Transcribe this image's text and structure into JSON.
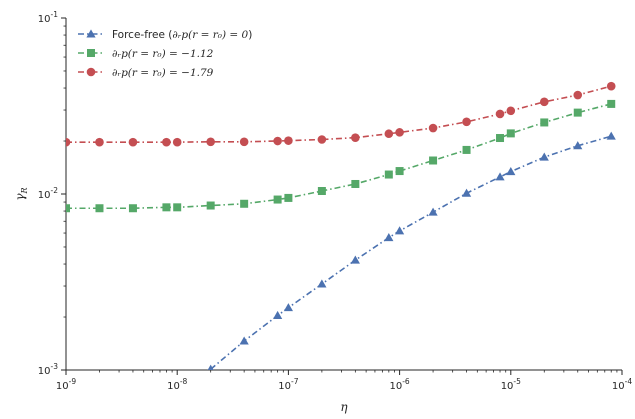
{
  "chart_data": {
    "type": "line",
    "xlabel": "η",
    "ylabel": "γR",
    "xscale": "log",
    "yscale": "log",
    "xlim": [
      1e-09,
      0.0001
    ],
    "ylim": [
      0.001,
      0.1
    ],
    "grid": false,
    "legend_position": "top-left",
    "x_ticks": [
      1e-09,
      1e-08,
      1e-07,
      1e-06,
      1e-05,
      0.0001
    ],
    "x_tick_labels": [
      {
        "base": "10",
        "exp": "-9"
      },
      {
        "base": "10",
        "exp": "-8"
      },
      {
        "base": "10",
        "exp": "-7"
      },
      {
        "base": "10",
        "exp": "-6"
      },
      {
        "base": "10",
        "exp": "-5"
      },
      {
        "base": "10",
        "exp": "-4"
      }
    ],
    "y_ticks": [
      0.001,
      0.01,
      0.1
    ],
    "y_tick_labels": [
      {
        "base": "10",
        "exp": "-3"
      },
      {
        "base": "10",
        "exp": "-2"
      },
      {
        "base": "10",
        "exp": "-1"
      }
    ],
    "series": [
      {
        "name": "Force-free (∂ᵣp(r = r₀) = 0)",
        "legend_parts": [
          {
            "text": "Force-free (",
            "style": "plain"
          },
          {
            "text": "∂ᵣp(r = r₀) = 0",
            "style": "math"
          },
          {
            "text": ")",
            "style": "plain"
          }
        ],
        "color": "#4C72B0",
        "marker": "triangle",
        "x": [
          2e-08,
          4e-08,
          8e-08,
          1e-07,
          2e-07,
          4e-07,
          8e-07,
          1e-06,
          2e-06,
          4e-06,
          8e-06,
          1e-05,
          2e-05,
          4e-05,
          8e-05
        ],
        "y": [
          0.00101,
          0.00146,
          0.00204,
          0.00226,
          0.00308,
          0.00421,
          0.00565,
          0.00617,
          0.00788,
          0.0101,
          0.0125,
          0.0134,
          0.0162,
          0.0188,
          0.0213
        ]
      },
      {
        "name": "∂ᵣp(r = r₀) = −1.12",
        "legend_parts": [
          {
            "text": "∂ᵣp(r = r₀) = −1.12",
            "style": "math"
          }
        ],
        "color": "#55A868",
        "marker": "square",
        "x": [
          1e-09,
          2e-09,
          4e-09,
          8e-09,
          1e-08,
          2e-08,
          4e-08,
          8e-08,
          1e-07,
          2e-07,
          4e-07,
          8e-07,
          1e-06,
          2e-06,
          4e-06,
          8e-06,
          1e-05,
          2e-05,
          4e-05,
          8e-05
        ],
        "y": [
          0.0083,
          0.0083,
          0.0083,
          0.0084,
          0.0084,
          0.0086,
          0.0088,
          0.0093,
          0.0095,
          0.0104,
          0.0114,
          0.0129,
          0.0135,
          0.0155,
          0.0178,
          0.0208,
          0.0221,
          0.0255,
          0.029,
          0.0325
        ]
      },
      {
        "name": "∂ᵣp(r = r₀) = −1.79",
        "legend_parts": [
          {
            "text": "∂ᵣp(r = r₀) = −1.79",
            "style": "math"
          }
        ],
        "color": "#C44E52",
        "marker": "circle",
        "x": [
          1e-09,
          2e-09,
          4e-09,
          8e-09,
          1e-08,
          2e-08,
          4e-08,
          8e-08,
          1e-07,
          2e-07,
          4e-07,
          8e-07,
          1e-06,
          2e-06,
          4e-06,
          8e-06,
          1e-05,
          2e-05,
          4e-05,
          8e-05
        ],
        "y": [
          0.0197,
          0.0197,
          0.0197,
          0.0197,
          0.0197,
          0.0198,
          0.0198,
          0.02,
          0.0201,
          0.0204,
          0.0209,
          0.022,
          0.0224,
          0.0237,
          0.0257,
          0.0285,
          0.0297,
          0.0334,
          0.0365,
          0.041
        ]
      }
    ]
  }
}
